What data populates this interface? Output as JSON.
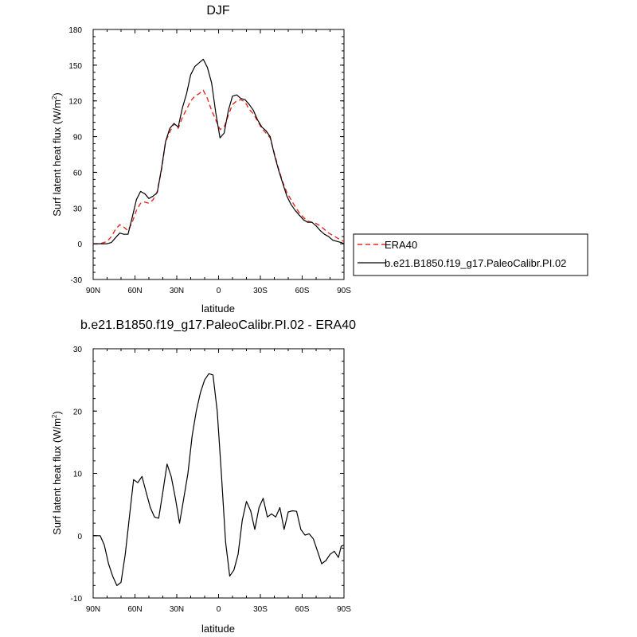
{
  "chart_data": [
    {
      "type": "line",
      "title": "DJF",
      "xlabel": "latitude",
      "ylabel": "Surf latent heat flux (W/m",
      "ylabel_sup": "2",
      "ylabel_end": ")",
      "xlim": [
        90,
        -90
      ],
      "ylim": [
        -30,
        180
      ],
      "xticks": [
        90,
        60,
        30,
        0,
        -30,
        -60,
        -90
      ],
      "xtick_labels": [
        "90N",
        "60N",
        "30N",
        "0",
        "30S",
        "60S",
        "90S"
      ],
      "yticks": [
        -30,
        0,
        30,
        60,
        90,
        120,
        150,
        180
      ],
      "ytick_labels": [
        "-30",
        "0",
        "30",
        "60",
        "90",
        "120",
        "150",
        "180"
      ],
      "legend": {
        "placement": "right"
      },
      "series": [
        {
          "name": "ERA40",
          "color": "#e8281e",
          "dash": "dashed",
          "x": [
            90,
            85,
            80,
            77,
            74,
            71,
            68,
            65,
            62,
            59,
            56,
            53,
            50,
            47,
            44,
            41,
            38,
            35,
            32,
            29,
            26,
            23,
            20,
            17,
            14,
            11,
            8,
            5,
            2,
            -1,
            -4,
            -7,
            -10,
            -13,
            -16,
            -19,
            -22,
            -25,
            -28,
            -31,
            -34,
            -37,
            -40,
            -43,
            -46,
            -49,
            -52,
            -55,
            -58,
            -61,
            -64,
            -67,
            -70,
            -73,
            -76,
            -79,
            -82,
            -85,
            -88,
            -90
          ],
          "y": [
            0,
            0,
            2,
            6,
            12,
            16,
            14,
            11,
            18,
            28,
            34,
            35,
            34,
            37,
            44,
            62,
            86,
            94,
            101,
            97,
            106,
            113,
            120,
            124,
            126,
            129,
            122,
            112,
            104,
            96,
            98,
            108,
            117,
            120,
            121,
            119,
            113,
            109,
            103,
            97,
            93,
            89,
            76,
            63,
            52,
            43,
            37,
            31,
            26,
            22,
            19,
            18,
            17,
            15,
            12,
            9,
            7,
            5,
            3,
            2
          ]
        },
        {
          "name": "b.e21.B1850.f19_g17.PaleoCalibr.PI.02",
          "color": "#000000",
          "dash": "solid",
          "x": [
            90,
            85,
            80,
            77,
            74,
            71,
            68,
            65,
            62,
            59,
            56,
            53,
            50,
            47,
            44,
            41,
            38,
            35,
            32,
            29,
            26,
            23,
            20,
            17,
            14,
            11,
            8,
            5,
            2,
            -1,
            -4,
            -7,
            -10,
            -13,
            -16,
            -19,
            -22,
            -25,
            -28,
            -31,
            -34,
            -37,
            -40,
            -43,
            -46,
            -49,
            -52,
            -55,
            -58,
            -61,
            -64,
            -67,
            -70,
            -73,
            -76,
            -79,
            -82,
            -85,
            -88,
            -90
          ],
          "y": [
            0,
            0,
            0,
            1,
            5,
            9,
            8,
            8,
            22,
            37,
            44,
            42,
            38,
            40,
            43,
            63,
            86,
            97,
            101,
            98,
            114,
            126,
            142,
            149,
            152,
            155,
            148,
            135,
            110,
            89,
            93,
            112,
            124,
            125,
            122,
            121,
            117,
            112,
            104,
            98,
            95,
            90,
            75,
            62,
            51,
            40,
            33,
            28,
            24,
            20,
            18,
            18,
            15,
            11,
            8,
            6,
            3,
            2,
            1,
            0
          ]
        }
      ]
    },
    {
      "type": "line",
      "title": "b.e21.B1850.f19_g17.PaleoCalibr.PI.02 - ERA40",
      "xlabel": "latitude",
      "ylabel": "Surf latent heat flux (W/m",
      "ylabel_sup": "2",
      "ylabel_end": ")",
      "xlim": [
        90,
        -90
      ],
      "ylim": [
        -10,
        30
      ],
      "xticks": [
        90,
        60,
        30,
        0,
        -30,
        -60,
        -90
      ],
      "xtick_labels": [
        "90N",
        "60N",
        "30N",
        "0",
        "30S",
        "60S",
        "90S"
      ],
      "yticks": [
        -10,
        0,
        10,
        20,
        30
      ],
      "ytick_labels": [
        "-10",
        "0",
        "10",
        "20",
        "30"
      ],
      "series": [
        {
          "color": "#000000",
          "dash": "solid",
          "x": [
            90,
            85,
            82,
            79,
            76,
            73,
            70,
            67,
            64,
            61,
            58,
            55,
            52,
            49,
            46,
            43,
            40,
            37,
            34,
            31,
            28,
            25,
            22,
            19,
            16,
            13,
            10,
            7,
            4,
            1,
            -2,
            -5,
            -8,
            -11,
            -14,
            -17,
            -20,
            -23,
            -26,
            -29,
            -32,
            -35,
            -38,
            -41,
            -44,
            -47,
            -50,
            -53,
            -56,
            -59,
            -62,
            -65,
            -68,
            -71,
            -74,
            -77,
            -80,
            -83,
            -86,
            -88,
            -90
          ],
          "y": [
            0,
            0,
            -1.5,
            -4.5,
            -6.5,
            -8,
            -7.5,
            -3,
            3,
            9,
            8.5,
            9.5,
            7,
            4.5,
            3,
            2.8,
            7,
            11.5,
            9.5,
            6,
            2,
            6,
            10,
            16,
            20,
            23,
            25,
            26,
            25.8,
            20,
            10,
            -1,
            -6.5,
            -5.5,
            -3,
            2.5,
            5.5,
            4,
            1,
            4.5,
            6,
            3,
            3.5,
            3,
            4.5,
            1,
            3.8,
            4,
            3.9,
            1,
            0.1,
            0.3,
            -0.5,
            -2.5,
            -4.5,
            -4,
            -3,
            -2.5,
            -3.5,
            -1.7,
            -1.5
          ]
        }
      ]
    }
  ]
}
